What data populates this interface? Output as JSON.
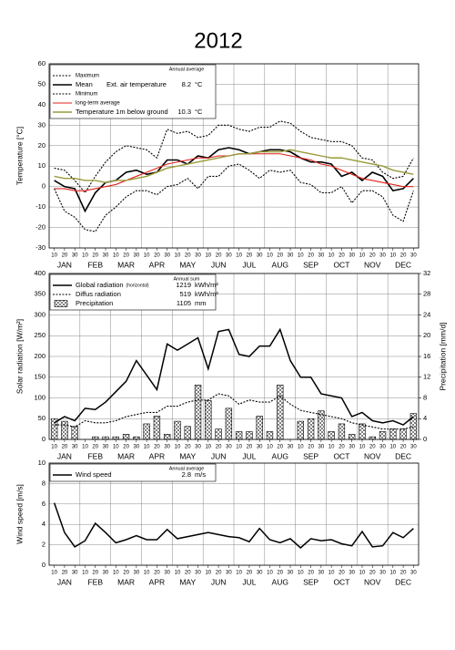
{
  "title": "2012",
  "chart_data": [
    {
      "type": "line",
      "y_label": "Temperature [°C]",
      "categories": [
        "10",
        "20",
        "30",
        "10",
        "20",
        "30",
        "10",
        "20",
        "30",
        "10",
        "20",
        "30",
        "10",
        "20",
        "30",
        "10",
        "20",
        "30",
        "10",
        "20",
        "30",
        "10",
        "20",
        "30",
        "10",
        "20",
        "30",
        "10",
        "20",
        "30",
        "10",
        "20",
        "30",
        "10",
        "20",
        "30"
      ],
      "months": [
        "JAN",
        "FEB",
        "MAR",
        "APR",
        "MAY",
        "JUN",
        "JUL",
        "AUG",
        "SEP",
        "OCT",
        "NOV",
        "DEC"
      ],
      "ylim": [
        -30,
        60
      ],
      "yticks": [
        -30,
        -20,
        -10,
        0,
        10,
        20,
        30,
        40,
        50,
        60
      ],
      "grid": true,
      "legend_title": "Ext. air temperature",
      "annual_label": "Annual average",
      "series": [
        {
          "name": "Maximum",
          "kind": "line",
          "color": "#000000",
          "dash": "2,1.5",
          "width": 1.1,
          "values": [
            9,
            8,
            3,
            -3,
            5,
            12,
            17,
            20,
            19,
            18,
            14,
            28,
            26,
            27,
            24,
            25,
            30,
            30,
            28,
            27,
            29,
            29,
            32,
            31,
            27,
            24,
            23,
            22,
            22,
            20,
            14,
            13,
            7,
            4,
            5,
            14
          ]
        },
        {
          "name": "Mean",
          "kind": "line",
          "color": "#000000",
          "dash": null,
          "width": 1.6,
          "annual": 8.2,
          "unit": "°C",
          "values": [
            3,
            0,
            -1,
            -12,
            -3,
            2,
            3,
            7,
            8,
            6,
            7,
            13,
            13,
            11,
            15,
            14,
            18,
            19,
            18,
            16,
            17,
            18,
            18,
            17,
            14,
            12,
            12,
            11,
            5,
            7,
            3,
            7,
            5,
            -2,
            -1,
            4
          ]
        },
        {
          "name": "Minimum",
          "kind": "line",
          "color": "#000000",
          "dash": "2,1.5",
          "width": 1.1,
          "values": [
            -1,
            -12,
            -15,
            -21,
            -22,
            -14,
            -10,
            -5,
            -2,
            -2,
            -4,
            0,
            1,
            4,
            -1,
            5,
            5,
            10,
            11,
            8,
            4,
            8,
            7,
            8,
            2,
            1,
            -3,
            -3,
            0,
            -8,
            -2,
            -2,
            -5,
            -14,
            -17,
            -2
          ]
        },
        {
          "name": "long-term average",
          "kind": "line",
          "color": "#e0201b",
          "dash": null,
          "width": 1.1,
          "values": [
            -1,
            -1,
            -2,
            -2,
            -1,
            0,
            1,
            3,
            5,
            7,
            9,
            11,
            12,
            13,
            14,
            14,
            15,
            15,
            16,
            16,
            16,
            16,
            16,
            15,
            14,
            13,
            11,
            10,
            8,
            6,
            4,
            3,
            2,
            1,
            0,
            0
          ]
        },
        {
          "name": "Temperature 1m below ground",
          "kind": "line",
          "color": "#9a9a3a",
          "dash": null,
          "width": 1.4,
          "annual": 10.3,
          "unit": "°C",
          "values": [
            5,
            4,
            4,
            3,
            3,
            2,
            3,
            3,
            4,
            5,
            7,
            9,
            10,
            11,
            12,
            13,
            14,
            15,
            16,
            16,
            17,
            17,
            17,
            18,
            17,
            16,
            15,
            14,
            14,
            13,
            12,
            11,
            10,
            8,
            7,
            6
          ]
        }
      ]
    },
    {
      "type": "line",
      "y_label": "Solar radiation [W/m²]",
      "y2_label": "Precipitation [mm/d]",
      "categories": [
        "10",
        "20",
        "30",
        "10",
        "20",
        "30",
        "10",
        "20",
        "30",
        "10",
        "20",
        "30",
        "10",
        "20",
        "30",
        "10",
        "20",
        "30",
        "10",
        "20",
        "30",
        "10",
        "20",
        "30",
        "10",
        "20",
        "30",
        "10",
        "20",
        "30",
        "10",
        "20",
        "30",
        "10",
        "20",
        "30"
      ],
      "months": [
        "JAN",
        "FEB",
        "MAR",
        "APR",
        "MAY",
        "JUN",
        "JUL",
        "AUG",
        "SEP",
        "OCT",
        "NOV",
        "DEC"
      ],
      "ylim": [
        0,
        400
      ],
      "yticks": [
        0,
        50,
        100,
        150,
        200,
        250,
        300,
        350,
        400
      ],
      "y2lim": [
        0,
        32
      ],
      "y2ticks": [
        0,
        4,
        8,
        12,
        16,
        20,
        24,
        28,
        32
      ],
      "grid": true,
      "annual_label": "Annual sum",
      "series": [
        {
          "name": "Global radiation",
          "note": "(horizontal)",
          "kind": "line",
          "color": "#000000",
          "dash": null,
          "width": 1.5,
          "annual": 1219,
          "unit": "kWh/m²",
          "values": [
            40,
            55,
            45,
            75,
            72,
            90,
            115,
            140,
            190,
            155,
            120,
            230,
            215,
            230,
            245,
            170,
            260,
            265,
            205,
            200,
            225,
            225,
            265,
            190,
            150,
            150,
            110,
            105,
            100,
            55,
            65,
            45,
            40,
            45,
            35,
            55
          ]
        },
        {
          "name": "Diffus radiation",
          "kind": "line",
          "color": "#000000",
          "dash": "2,1.5",
          "width": 1.1,
          "annual": 519,
          "unit": "kWh/m²",
          "values": [
            35,
            35,
            30,
            45,
            40,
            40,
            45,
            55,
            60,
            65,
            65,
            80,
            80,
            90,
            95,
            95,
            110,
            105,
            85,
            95,
            90,
            90,
            105,
            85,
            70,
            65,
            60,
            55,
            50,
            40,
            35,
            30,
            25,
            25,
            25,
            30
          ]
        },
        {
          "name": "Precipitation",
          "kind": "bar",
          "axis": "y2",
          "color": "#000000",
          "annual": 1105,
          "unit": "mm",
          "values": [
            4,
            3.5,
            2.5,
            0,
            0.5,
            0.5,
            0.5,
            1,
            0.5,
            3,
            4.5,
            1,
            3.5,
            2.5,
            10.5,
            7.5,
            2,
            6,
            1.5,
            1.5,
            4.5,
            1.5,
            10.5,
            0,
            3.5,
            4,
            5.5,
            1.5,
            3,
            1,
            3,
            0.5,
            1.5,
            2,
            2,
            5
          ]
        }
      ]
    },
    {
      "type": "line",
      "y_label": "Wind speed [m/s]",
      "categories": [
        "10",
        "20",
        "30",
        "10",
        "20",
        "30",
        "10",
        "20",
        "30",
        "10",
        "20",
        "30",
        "10",
        "20",
        "30",
        "10",
        "20",
        "30",
        "10",
        "20",
        "30",
        "10",
        "20",
        "30",
        "10",
        "20",
        "30",
        "10",
        "20",
        "30",
        "10",
        "20",
        "30",
        "10",
        "20",
        "30"
      ],
      "months": [
        "JAN",
        "FEB",
        "MAR",
        "APR",
        "MAY",
        "JUN",
        "JUL",
        "AUG",
        "SEP",
        "OCT",
        "NOV",
        "DEC"
      ],
      "ylim": [
        0,
        10
      ],
      "yticks": [
        0,
        2,
        4,
        6,
        8,
        10
      ],
      "grid": true,
      "annual_label": "Annual average",
      "series": [
        {
          "name": "Wind speed",
          "kind": "line",
          "color": "#000000",
          "dash": null,
          "width": 1.5,
          "annual": 2.8,
          "unit": "m/s",
          "values": [
            6.1,
            3.2,
            1.8,
            2.4,
            4.1,
            3.2,
            2.2,
            2.5,
            2.9,
            2.5,
            2.5,
            3.5,
            2.6,
            2.8,
            3,
            3.2,
            3,
            2.8,
            2.7,
            2.3,
            3.6,
            2.5,
            2.2,
            2.6,
            1.7,
            2.6,
            2.4,
            2.5,
            2.1,
            1.9,
            3.3,
            1.8,
            1.9,
            3.2,
            2.7,
            3.6
          ]
        }
      ]
    }
  ]
}
